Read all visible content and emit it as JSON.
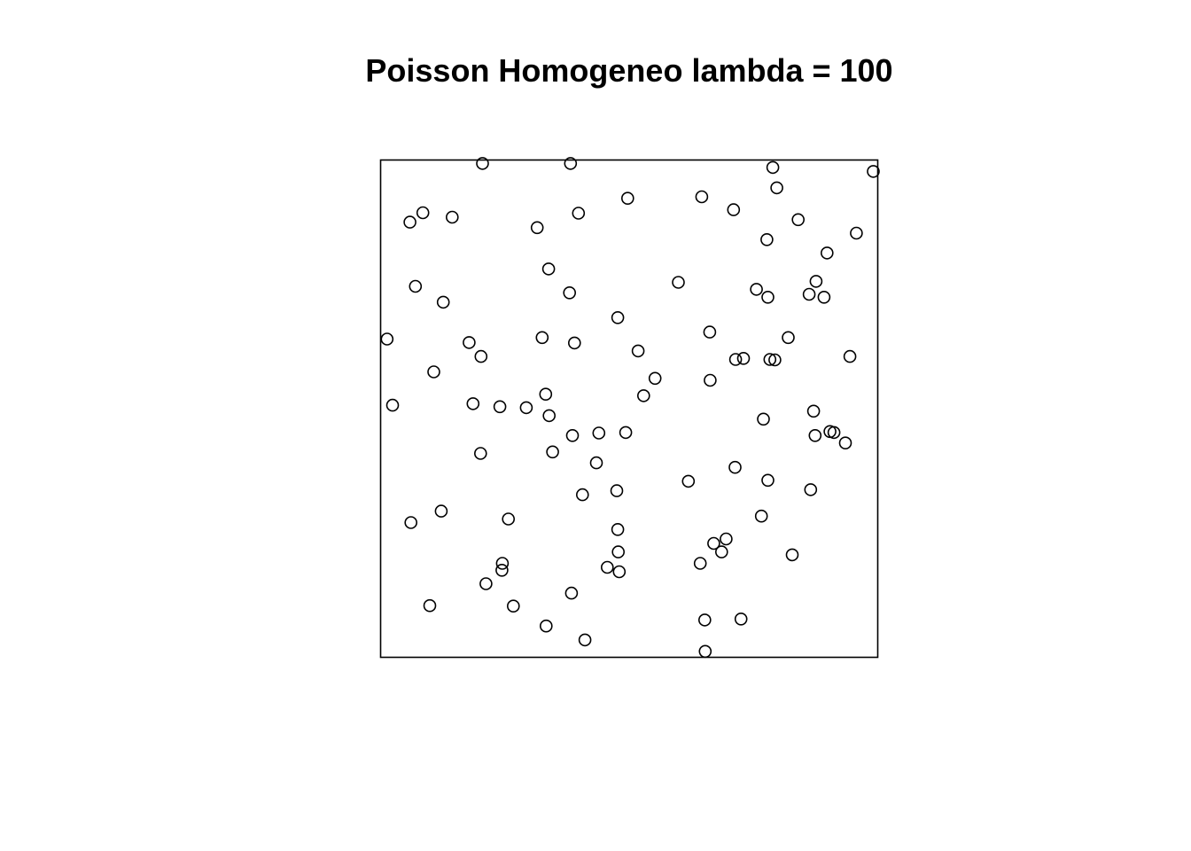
{
  "chart_data": {
    "type": "scatter",
    "title": "Poisson Homogeneo lambda = 100",
    "xlabel": "",
    "ylabel": "",
    "xlim": [
      0,
      1
    ],
    "ylim": [
      0,
      1
    ],
    "grid": false,
    "axes_shown": false,
    "marker": "open-circle",
    "color": "#000000",
    "points": [
      [
        0.205,
        0.993
      ],
      [
        0.382,
        0.993
      ],
      [
        0.789,
        0.985
      ],
      [
        0.991,
        0.977
      ],
      [
        0.797,
        0.944
      ],
      [
        0.497,
        0.923
      ],
      [
        0.646,
        0.926
      ],
      [
        0.71,
        0.9
      ],
      [
        0.085,
        0.894
      ],
      [
        0.059,
        0.875
      ],
      [
        0.144,
        0.885
      ],
      [
        0.398,
        0.893
      ],
      [
        0.315,
        0.864
      ],
      [
        0.84,
        0.88
      ],
      [
        0.957,
        0.853
      ],
      [
        0.777,
        0.84
      ],
      [
        0.898,
        0.813
      ],
      [
        0.338,
        0.781
      ],
      [
        0.07,
        0.746
      ],
      [
        0.599,
        0.754
      ],
      [
        0.756,
        0.74
      ],
      [
        0.876,
        0.756
      ],
      [
        0.862,
        0.73
      ],
      [
        0.892,
        0.724
      ],
      [
        0.126,
        0.714
      ],
      [
        0.38,
        0.733
      ],
      [
        0.779,
        0.724
      ],
      [
        0.477,
        0.683
      ],
      [
        0.013,
        0.64
      ],
      [
        0.178,
        0.633
      ],
      [
        0.325,
        0.643
      ],
      [
        0.39,
        0.632
      ],
      [
        0.662,
        0.654
      ],
      [
        0.82,
        0.643
      ],
      [
        0.518,
        0.616
      ],
      [
        0.202,
        0.605
      ],
      [
        0.944,
        0.605
      ],
      [
        0.714,
        0.599
      ],
      [
        0.73,
        0.601
      ],
      [
        0.783,
        0.599
      ],
      [
        0.793,
        0.598
      ],
      [
        0.107,
        0.574
      ],
      [
        0.552,
        0.561
      ],
      [
        0.663,
        0.557
      ],
      [
        0.332,
        0.529
      ],
      [
        0.529,
        0.526
      ],
      [
        0.024,
        0.507
      ],
      [
        0.186,
        0.51
      ],
      [
        0.24,
        0.504
      ],
      [
        0.293,
        0.502
      ],
      [
        0.339,
        0.486
      ],
      [
        0.871,
        0.495
      ],
      [
        0.77,
        0.479
      ],
      [
        0.386,
        0.446
      ],
      [
        0.439,
        0.451
      ],
      [
        0.493,
        0.452
      ],
      [
        0.904,
        0.454
      ],
      [
        0.912,
        0.452
      ],
      [
        0.874,
        0.446
      ],
      [
        0.935,
        0.431
      ],
      [
        0.201,
        0.41
      ],
      [
        0.346,
        0.413
      ],
      [
        0.434,
        0.391
      ],
      [
        0.713,
        0.382
      ],
      [
        0.619,
        0.354
      ],
      [
        0.779,
        0.356
      ],
      [
        0.406,
        0.327
      ],
      [
        0.475,
        0.335
      ],
      [
        0.865,
        0.337
      ],
      [
        0.122,
        0.294
      ],
      [
        0.061,
        0.271
      ],
      [
        0.257,
        0.278
      ],
      [
        0.766,
        0.284
      ],
      [
        0.477,
        0.257
      ],
      [
        0.695,
        0.238
      ],
      [
        0.67,
        0.229
      ],
      [
        0.478,
        0.212
      ],
      [
        0.686,
        0.212
      ],
      [
        0.828,
        0.206
      ],
      [
        0.245,
        0.189
      ],
      [
        0.456,
        0.181
      ],
      [
        0.48,
        0.172
      ],
      [
        0.643,
        0.189
      ],
      [
        0.244,
        0.175
      ],
      [
        0.212,
        0.148
      ],
      [
        0.384,
        0.129
      ],
      [
        0.099,
        0.104
      ],
      [
        0.267,
        0.103
      ],
      [
        0.652,
        0.075
      ],
      [
        0.725,
        0.077
      ],
      [
        0.333,
        0.063
      ],
      [
        0.411,
        0.035
      ],
      [
        0.653,
        0.012
      ]
    ]
  }
}
